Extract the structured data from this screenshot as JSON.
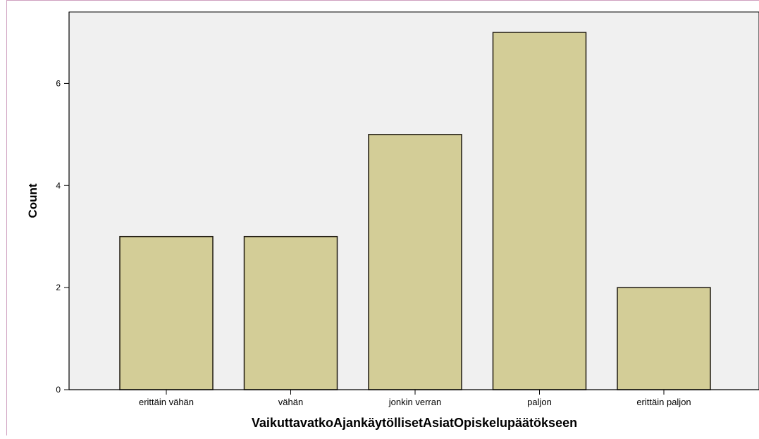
{
  "chart_data": {
    "type": "bar",
    "categories": [
      "erittäin vähän",
      "vähän",
      "jonkin verran",
      "paljon",
      "erittäin paljon"
    ],
    "values": [
      3,
      3,
      5,
      7,
      2
    ],
    "xlabel": "VaikuttavatkoAjankäytöllisetAsiatOpiskelupäätökseen",
    "ylabel": "Count",
    "ylim": [
      0,
      7.4
    ],
    "yticks": [
      0,
      2,
      4,
      6
    ],
    "grid": false,
    "colors": {
      "bar_fill": "#d3cd97",
      "bar_stroke": "#1f1a10",
      "plot_background": "#f0f0f0",
      "axis": "#000000",
      "border": "#cfa0c0"
    }
  }
}
